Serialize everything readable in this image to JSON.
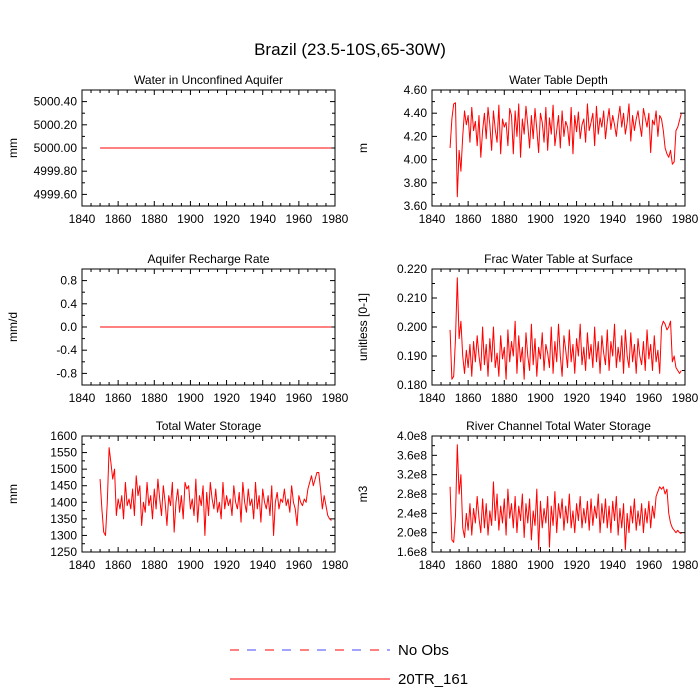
{
  "figure_title": "Brazil (23.5-10S,65-30W)",
  "legend": [
    {
      "label": "No Obs",
      "color": "#ff0000",
      "color2": "#4444ff",
      "style": "dashed"
    },
    {
      "label": "20TR_161",
      "color": "#ff0000",
      "style": "solid"
    }
  ],
  "chart_data": [
    {
      "type": "line",
      "title": "Water in Unconfined Aquifer",
      "ylabel": "mm",
      "xlim": [
        1840,
        1980
      ],
      "xticks": [
        1840,
        1860,
        1880,
        1900,
        1920,
        1940,
        1960,
        1980
      ],
      "ylim": [
        4999.5,
        5000.5
      ],
      "yticks": [
        4999.6,
        4999.8,
        5000.0,
        5000.2,
        5000.4
      ],
      "ytick_labels": [
        "4999.60",
        "4999.80",
        "5000.00",
        "5000.20",
        "5000.40"
      ],
      "series": [
        {
          "name": "20TR_161",
          "x_start": 1850,
          "x_step": 1,
          "values": [
            5000,
            5000,
            5000,
            5000,
            5000,
            5000,
            5000,
            5000,
            5000,
            5000,
            5000,
            5000,
            5000,
            5000,
            5000,
            5000,
            5000,
            5000,
            5000,
            5000,
            5000,
            5000,
            5000,
            5000,
            5000,
            5000,
            5000,
            5000,
            5000,
            5000,
            5000,
            5000,
            5000,
            5000,
            5000,
            5000,
            5000,
            5000,
            5000,
            5000,
            5000,
            5000,
            5000,
            5000,
            5000,
            5000,
            5000,
            5000,
            5000,
            5000,
            5000,
            5000,
            5000,
            5000,
            5000,
            5000,
            5000,
            5000,
            5000,
            5000,
            5000,
            5000,
            5000,
            5000,
            5000,
            5000,
            5000,
            5000,
            5000,
            5000,
            5000,
            5000,
            5000,
            5000,
            5000,
            5000,
            5000,
            5000,
            5000,
            5000,
            5000,
            5000,
            5000,
            5000,
            5000,
            5000,
            5000,
            5000,
            5000,
            5000,
            5000,
            5000,
            5000,
            5000,
            5000,
            5000,
            5000,
            5000,
            5000,
            5000,
            5000,
            5000,
            5000,
            5000,
            5000,
            5000,
            5000,
            5000,
            5000,
            5000,
            5000,
            5000,
            5000,
            5000,
            5000,
            5000,
            5000,
            5000,
            5000,
            5000,
            5000,
            5000,
            5000,
            5000,
            5000,
            5000,
            5000,
            5000,
            5000
          ]
        }
      ]
    },
    {
      "type": "line",
      "title": "Water Table Depth",
      "ylabel": "m",
      "xlim": [
        1840,
        1980
      ],
      "xticks": [
        1840,
        1860,
        1880,
        1900,
        1920,
        1940,
        1960,
        1980
      ],
      "ylim": [
        3.6,
        4.6
      ],
      "yticks": [
        3.6,
        3.8,
        4.0,
        4.2,
        4.4,
        4.6
      ],
      "ytick_labels": [
        "3.60",
        "3.80",
        "4.00",
        "4.20",
        "4.40",
        "4.60"
      ],
      "series": [
        {
          "name": "20TR_161",
          "x_start": 1850,
          "x_step": 1,
          "values": [
            4.1,
            4.35,
            4.48,
            4.49,
            3.68,
            4.08,
            3.9,
            4.2,
            4.42,
            4.3,
            4.38,
            4.15,
            4.45,
            4.25,
            4.33,
            4.12,
            4.38,
            4.02,
            4.25,
            4.4,
            4.18,
            4.45,
            4.3,
            4.08,
            4.42,
            4.26,
            4.15,
            4.47,
            4.05,
            4.35,
            4.28,
            4.32,
            4.12,
            4.44,
            4.38,
            4.05,
            4.42,
            4.2,
            4.48,
            4.02,
            4.35,
            4.22,
            4.46,
            4.3,
            4.1,
            4.38,
            4.18,
            4.44,
            4.26,
            4.06,
            4.4,
            4.32,
            4.15,
            4.45,
            4.08,
            4.36,
            4.22,
            4.47,
            4.12,
            4.25,
            4.38,
            4.1,
            4.42,
            4.2,
            4.33,
            4.28,
            4.12,
            4.45,
            4.05,
            4.38,
            4.24,
            4.41,
            4.18,
            4.3,
            4.35,
            4.15,
            4.48,
            4.25,
            4.32,
            4.4,
            4.12,
            4.46,
            4.22,
            4.36,
            4.28,
            4.42,
            4.18,
            4.33,
            4.44,
            4.26,
            4.38,
            4.3,
            4.2,
            4.35,
            4.46,
            4.28,
            4.4,
            4.22,
            4.32,
            4.48,
            4.16,
            4.38,
            4.25,
            4.35,
            4.42,
            4.3,
            4.2,
            4.44,
            4.36,
            4.28,
            4.4,
            4.06,
            4.34,
            4.3,
            4.42,
            4.2,
            4.38,
            4.35,
            4.25,
            4.1,
            4.05,
            4.02,
            4.08,
            3.96,
            3.98,
            4.25,
            4.28,
            4.34,
            4.4
          ]
        }
      ]
    },
    {
      "type": "line",
      "title": "Aquifer Recharge Rate",
      "ylabel": "mm/d",
      "xlim": [
        1840,
        1980
      ],
      "xticks": [
        1840,
        1860,
        1880,
        1900,
        1920,
        1940,
        1960,
        1980
      ],
      "ylim": [
        -1.0,
        1.0
      ],
      "yticks": [
        -0.8,
        -0.4,
        0.0,
        0.4,
        0.8
      ],
      "ytick_labels": [
        "-0.8",
        "-0.4",
        "0.0",
        "0.4",
        "0.8"
      ],
      "series": [
        {
          "name": "20TR_161",
          "x_start": 1850,
          "x_step": 1,
          "values": [
            0,
            0,
            0,
            0,
            0,
            0,
            0,
            0,
            0,
            0,
            0,
            0,
            0,
            0,
            0,
            0,
            0,
            0,
            0,
            0,
            0,
            0,
            0,
            0,
            0,
            0,
            0,
            0,
            0,
            0,
            0,
            0,
            0,
            0,
            0,
            0,
            0,
            0,
            0,
            0,
            0,
            0,
            0,
            0,
            0,
            0,
            0,
            0,
            0,
            0,
            0,
            0,
            0,
            0,
            0,
            0,
            0,
            0,
            0,
            0,
            0,
            0,
            0,
            0,
            0,
            0,
            0,
            0,
            0,
            0,
            0,
            0,
            0,
            0,
            0,
            0,
            0,
            0,
            0,
            0,
            0,
            0,
            0,
            0,
            0,
            0,
            0,
            0,
            0,
            0,
            0,
            0,
            0,
            0,
            0,
            0,
            0,
            0,
            0,
            0,
            0,
            0,
            0,
            0,
            0,
            0,
            0,
            0,
            0,
            0,
            0,
            0,
            0,
            0,
            0,
            0,
            0,
            0,
            0,
            0,
            0,
            0,
            0,
            0,
            0,
            0,
            0,
            0,
            0
          ]
        }
      ]
    },
    {
      "type": "line",
      "title": "Frac Water Table at Surface",
      "ylabel": "unitless [0-1]",
      "xlim": [
        1840,
        1980
      ],
      "xticks": [
        1840,
        1860,
        1880,
        1900,
        1920,
        1940,
        1960,
        1980
      ],
      "ylim": [
        0.18,
        0.22
      ],
      "yticks": [
        0.18,
        0.19,
        0.2,
        0.21,
        0.22
      ],
      "ytick_labels": [
        "0.180",
        "0.190",
        "0.200",
        "0.210",
        "0.220"
      ],
      "series": [
        {
          "name": "20TR_161",
          "x_start": 1850,
          "x_step": 1,
          "values": [
            0.199,
            0.182,
            0.183,
            0.196,
            0.217,
            0.196,
            0.202,
            0.19,
            0.184,
            0.192,
            0.186,
            0.194,
            0.183,
            0.195,
            0.188,
            0.197,
            0.19,
            0.185,
            0.2,
            0.187,
            0.194,
            0.183,
            0.196,
            0.188,
            0.2,
            0.186,
            0.191,
            0.183,
            0.197,
            0.189,
            0.193,
            0.182,
            0.199,
            0.188,
            0.195,
            0.19,
            0.202,
            0.184,
            0.197,
            0.188,
            0.193,
            0.182,
            0.198,
            0.19,
            0.185,
            0.201,
            0.187,
            0.196,
            0.183,
            0.193,
            0.189,
            0.198,
            0.185,
            0.194,
            0.191,
            0.186,
            0.2,
            0.184,
            0.195,
            0.188,
            0.201,
            0.19,
            0.183,
            0.197,
            0.192,
            0.186,
            0.199,
            0.188,
            0.194,
            0.184,
            0.196,
            0.19,
            0.201,
            0.187,
            0.193,
            0.185,
            0.198,
            0.189,
            0.194,
            0.186,
            0.2,
            0.188,
            0.195,
            0.184,
            0.197,
            0.191,
            0.187,
            0.199,
            0.185,
            0.195,
            0.19,
            0.201,
            0.186,
            0.193,
            0.188,
            0.197,
            0.184,
            0.199,
            0.19,
            0.186,
            0.198,
            0.188,
            0.194,
            0.184,
            0.196,
            0.19,
            0.187,
            0.195,
            0.185,
            0.199,
            0.189,
            0.194,
            0.185,
            0.197,
            0.188,
            0.192,
            0.184,
            0.2,
            0.202,
            0.201,
            0.199,
            0.2,
            0.202,
            0.188,
            0.19,
            0.186,
            0.185,
            0.184,
            0.185
          ]
        }
      ]
    },
    {
      "type": "line",
      "title": "Total Water Storage",
      "ylabel": "mm",
      "xlim": [
        1840,
        1980
      ],
      "xticks": [
        1840,
        1860,
        1880,
        1900,
        1920,
        1940,
        1960,
        1980
      ],
      "ylim": [
        1250,
        1600
      ],
      "yticks": [
        1250,
        1300,
        1350,
        1400,
        1450,
        1500,
        1550,
        1600
      ],
      "ytick_labels": [
        "1250",
        "1300",
        "1350",
        "1400",
        "1450",
        "1500",
        "1550",
        "1600"
      ],
      "series": [
        {
          "name": "20TR_161",
          "x_start": 1850,
          "x_step": 1,
          "values": [
            1470,
            1380,
            1310,
            1300,
            1400,
            1565,
            1520,
            1470,
            1500,
            1360,
            1410,
            1380,
            1420,
            1350,
            1460,
            1390,
            1410,
            1380,
            1440,
            1360,
            1480,
            1420,
            1450,
            1330,
            1400,
            1370,
            1460,
            1390,
            1420,
            1350,
            1440,
            1380,
            1470,
            1410,
            1360,
            1450,
            1400,
            1330,
            1420,
            1390,
            1460,
            1310,
            1400,
            1440,
            1370,
            1420,
            1350,
            1460,
            1440,
            1450,
            1380,
            1410,
            1360,
            1470,
            1340,
            1420,
            1390,
            1450,
            1300,
            1430,
            1360,
            1460,
            1410,
            1380,
            1440,
            1370,
            1400,
            1350,
            1460,
            1380,
            1420,
            1390,
            1410,
            1360,
            1450,
            1400,
            1380,
            1430,
            1340,
            1460,
            1400,
            1370,
            1440,
            1390,
            1410,
            1350,
            1460,
            1380,
            1420,
            1340,
            1440,
            1400,
            1380,
            1420,
            1360,
            1450,
            1300,
            1400,
            1430,
            1380,
            1410,
            1400,
            1440,
            1390,
            1410,
            1370,
            1450,
            1400,
            1380,
            1330,
            1420,
            1400,
            1390,
            1410,
            1400,
            1440,
            1460,
            1480,
            1450,
            1470,
            1490,
            1490,
            1440,
            1380,
            1420,
            1390,
            1360,
            1350,
            1345
          ]
        }
      ]
    },
    {
      "type": "line",
      "title": "River Channel Total Water Storage",
      "ylabel": "m3",
      "xlim": [
        1840,
        1980
      ],
      "xticks": [
        1840,
        1860,
        1880,
        1900,
        1920,
        1940,
        1960,
        1980
      ],
      "ylim": [
        160000000.0,
        400000000.0
      ],
      "yticks": [
        160000000.0,
        200000000.0,
        240000000.0,
        280000000.0,
        320000000.0,
        360000000.0,
        400000000.0
      ],
      "ytick_labels": [
        "1.6e8",
        "2.0e8",
        "2.4e8",
        "2.8e8",
        "3.2e8",
        "3.6e8",
        "4.0e8"
      ],
      "series": [
        {
          "name": "20TR_161",
          "x_start": 1850,
          "x_step": 1,
          "values": [
            295000000.0,
            185000000.0,
            180000000.0,
            235000000.0,
            382000000.0,
            280000000.0,
            320000000.0,
            210000000.0,
            190000000.0,
            240000000.0,
            205000000.0,
            260000000.0,
            195000000.0,
            250000000.0,
            220000000.0,
            275000000.0,
            230000000.0,
            200000000.0,
            270000000.0,
            210000000.0,
            260000000.0,
            195000000.0,
            245000000.0,
            215000000.0,
            305000000.0,
            225000000.0,
            280000000.0,
            205000000.0,
            255000000.0,
            220000000.0,
            270000000.0,
            195000000.0,
            290000000.0,
            230000000.0,
            260000000.0,
            210000000.0,
            275000000.0,
            200000000.0,
            255000000.0,
            225000000.0,
            280000000.0,
            190000000.0,
            260000000.0,
            220000000.0,
            270000000.0,
            185000000.0,
            245000000.0,
            215000000.0,
            290000000.0,
            165000000.0,
            265000000.0,
            210000000.0,
            250000000.0,
            220000000.0,
            275000000.0,
            170000000.0,
            255000000.0,
            215000000.0,
            285000000.0,
            200000000.0,
            260000000.0,
            230000000.0,
            270000000.0,
            205000000.0,
            255000000.0,
            220000000.0,
            280000000.0,
            210000000.0,
            245000000.0,
            200000000.0,
            260000000.0,
            225000000.0,
            275000000.0,
            210000000.0,
            250000000.0,
            220000000.0,
            265000000.0,
            205000000.0,
            270000000.0,
            215000000.0,
            255000000.0,
            230000000.0,
            280000000.0,
            200000000.0,
            260000000.0,
            220000000.0,
            270000000.0,
            210000000.0,
            255000000.0,
            200000000.0,
            265000000.0,
            225000000.0,
            275000000.0,
            195000000.0,
            250000000.0,
            210000000.0,
            260000000.0,
            165000000.0,
            240000000.0,
            200000000.0,
            255000000.0,
            220000000.0,
            270000000.0,
            205000000.0,
            245000000.0,
            215000000.0,
            260000000.0,
            200000000.0,
            250000000.0,
            220000000.0,
            265000000.0,
            210000000.0,
            255000000.0,
            230000000.0,
            275000000.0,
            285000000.0,
            295000000.0,
            290000000.0,
            295000000.0,
            280000000.0,
            290000000.0,
            240000000.0,
            220000000.0,
            210000000.0,
            205000000.0,
            200000000.0,
            205000000.0,
            200000000.0,
            198000000.0
          ]
        }
      ]
    }
  ]
}
